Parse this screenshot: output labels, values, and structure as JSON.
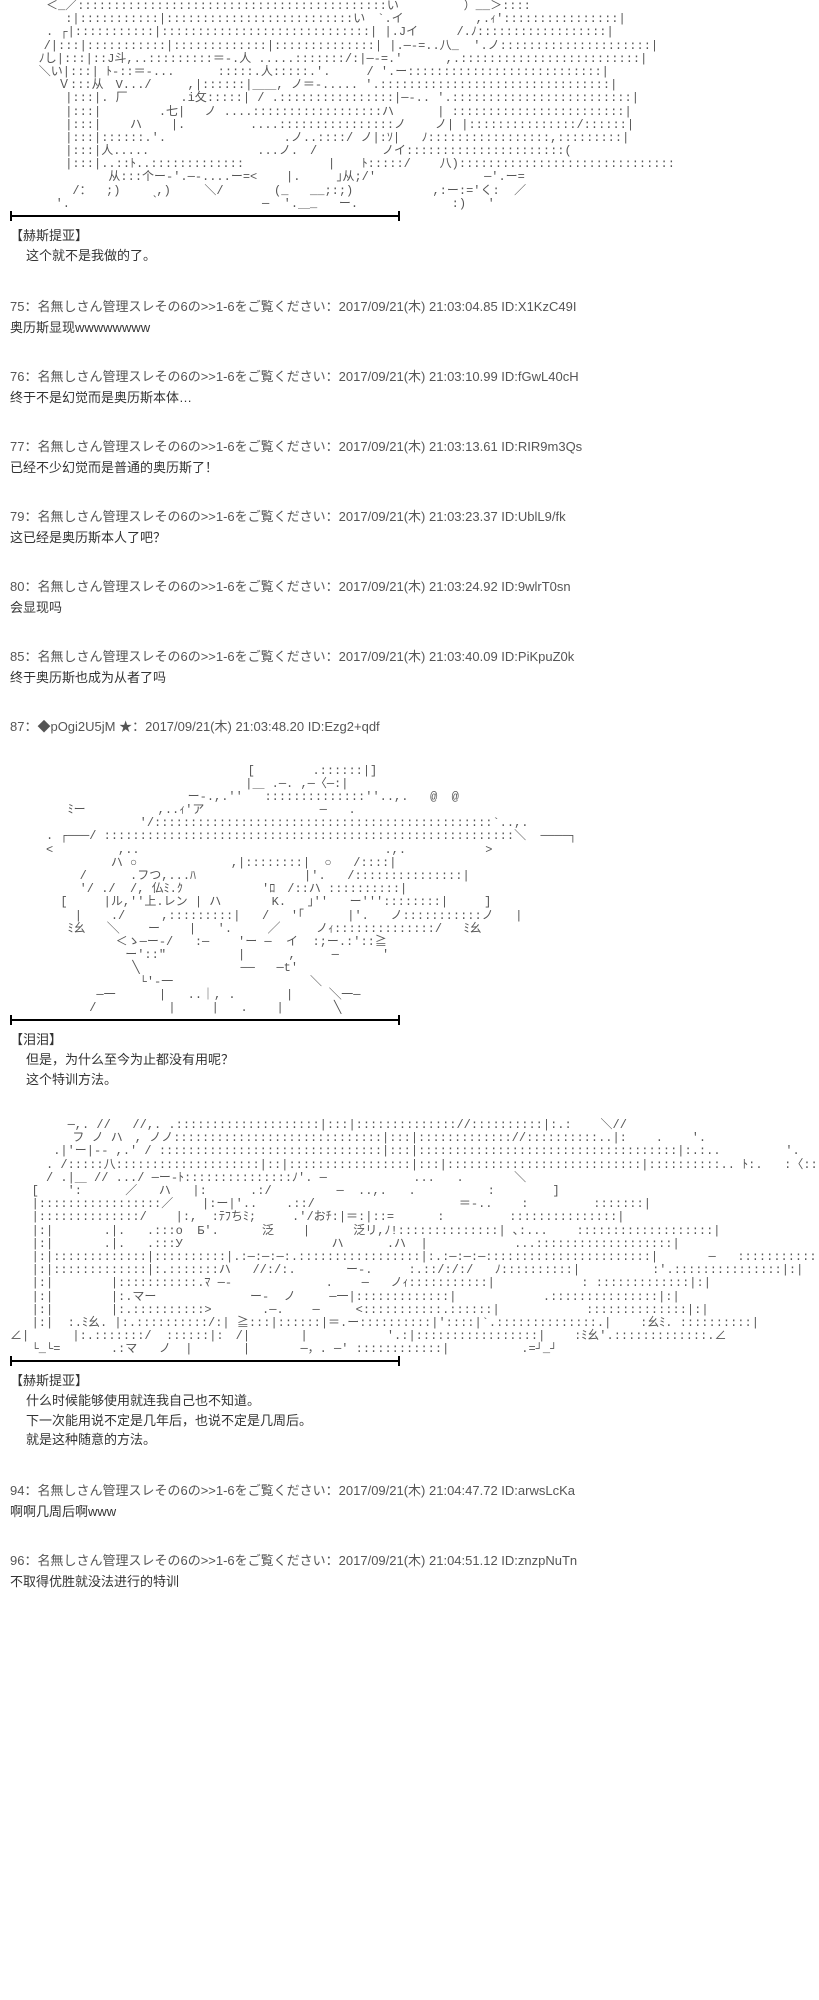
{
  "posts": [
    {
      "ascii": "     ＜_／:::::::::::::::::::::::::::::::::::::::::::い         ）__＞::::｀\n     　 :|:::::::::::|::::::::::::::::::::::::::い　`.イ          ,.ｨ'::::::::::::::::|\n     . ┌|:::::::::::|:::::::::::::::::::::::::::::| |.Jイ　  　/.ﾉ::::::::::::::::::|\n　   /|:::|:::::::::::|:::::::::::::|::::::::::::::| |.─-=..八_  '.ノ:::::::::::::::::::::|\n    ﾉし|:::|::J斗,..:::::::::＝-.人 .....:::::::/:|─-=.'      ,.:::::::::::::::::::::::::|\n    ＼い|:::| ﾄ-::＝-...      :::::.人:::::.'.     / '.ー:::::::::::::::::::::::::::|\n     　Ｖ:::从　V.../     ,|::::::|＿＿, ノ＝-..... '.::::::::::::::::::::::::::::::::|\n     　 |:::|. 厂    　　.i攵:::::| / .::::::::::::::::|─-.. '.:::::::::::::::::::::::::|\n     　 |:::|        .七| 　ノ ....::::::::::::::::::ハ      | ::::::::::::::::::::::::|\n     　 |:::|    ハ    |.    　　　....::::::::::::::::ノ    ノ| |:::::::::::::::/::::::|\n     　 |:::|::::::.'.          　   　.ノ..::::/ ノ|:ｿ|   ﾉ:::::::::::::::::,:::::::::|\n     　 |:::|人.....               ...ノ.　/         ノイ::::::::::::::::::::::(\n     　 |:::|..::ﾄ..::::::::::::: 　         |　  ﾄ:::::/    八)::::::::::::::::::::::::::::::\n     　       从:::个ー-'.─-....ー=<    |.     ｣从;/'               ─'.ー=\n      　 /：  ;)     ,)   　＼/       (_   __;:;)           ,:ー:='く:  ／\n   　　'.           ｀              ─  '.＿_   ー.             :)   '",
      "speaker": "【赫斯提亚】",
      "dialogue": "这个就不是我做的了。"
    }
  ],
  "comments": [
    {
      "num": "75",
      "name": "：名無しさん管理スレその6の>>1-6をご覧ください：",
      "date": "2017/09/21(木) 21:03:04.85",
      "id": "ID:X1KzC49I",
      "body": "奥历斯显现wwwwwwww"
    },
    {
      "num": "76",
      "name": "：名無しさん管理スレその6の>>1-6をご覧ください：",
      "date": "2017/09/21(木) 21:03:10.99",
      "id": "ID:fGwL40cH",
      "body": "终于不是幻觉而是奥历斯本体…"
    },
    {
      "num": "77",
      "name": "：名無しさん管理スレその6の>>1-6をご覧ください：",
      "date": "2017/09/21(木) 21:03:13.61",
      "id": "ID:RIR9m3Qs",
      "body": "已经不少幻觉而是普通的奥历斯了！"
    },
    {
      "num": "79",
      "name": "：名無しさん管理スレその6の>>1-6をご覧ください：",
      "date": "2017/09/21(木) 21:03:23.37",
      "id": "ID:UblL9/fk",
      "body": "这已经是奥历斯本人了吧？"
    },
    {
      "num": "80",
      "name": "：名無しさん管理スレその6の>>1-6をご覧ください：",
      "date": "2017/09/21(木) 21:03:24.92",
      "id": "ID:9wlrT0sn",
      "body": "会显现吗"
    },
    {
      "num": "85",
      "name": "：名無しさん管理スレその6の>>1-6をご覧ください：",
      "date": "2017/09/21(木) 21:03:40.09",
      "id": "ID:PiKpuZ0k",
      "body": "终于奥历斯也成为从者了吗"
    }
  ],
  "authorPost": {
    "num": "87",
    "name": "：◆pOgi2U5jM ★：",
    "date": "2017/09/21(木) 21:03:48.20",
    "id": "ID:Ezg2+qdf"
  },
  "posts2": [
    {
      "ascii": "                                 [        .::::::|]\n           　                    |＿ .─. ,─〈─:|\n            　           ー-.,.''   ::::::::::::::''..,.   @  @\n        ﾐー          ,..ｨ'ア                ─   .\n                  '/:::::::::::::::::::::::::::::::::::::::::::::::`..,.\n     . ┌───/ :::::::::::::::::::::::::::::::::::::::::::::::::::::::::＼  ────┐\n     <         ,..                                  .,.           >\n              ハ ○             ,|::::::::|  ○   /::::|\n       　 /      .フつ,...ﾊ  　 　 　      |'.   /:::::::::::::::|\n     　   '/ ./  /, 仏ﾐ.ｸ           'ﾛ　/::ハ ::::::::::|\n       [     |ル,''上.レン | ハ       K.   ｣''   ー'''::::::::|     ]\n         |    ./     ,:::::::::|   /   '｢      |'.   ノ:::::::::::ノ   |\n        ﾐ幺   ╲    ー    |   '.     ╱     ノｨ::::::::::::::/   ﾐ幺\n          　   ＜ゝ─ー-/   :─    'ー ─  イ  :;ー.:'::≧\n                ー'::\"          |      ,     ─      '\n                 ╲              ──   ─t'\n                  └'-一                   ＼\n            ─一      |   ..｜, .       |     ╲一─\n           /          |     |   .    |       ╲",
      "speaker": "【泪泪】",
      "dialogue": "但是，为什么至今为止都没有用呢？\n这个特训方法。"
    },
    {
      "ascii": "        ─,. //   //,. .::::::::::::::::::::|:::|:::::::::::::://::::::::::|:.:    ＼//\n       　フ ノ ハ　, ノノ:::::::::::::::::::::::::::::|:::|::::::::::::://::::::::::..|:    .    '.\n      .|'ー|-- ,.' / :::::::::::::::::::::::::::::::|:::|::::::::::::::::::::::::::::::::::::|:.:..         '.\n     . /:::::八::::::::::::::::::::|::|:::::::::::::::::|:::|:::::::::::::::::::::::::::|::::::::::.. ﾄ:.   :〈::::|\n     / .|＿ // .../ ─ー-ﾄ:::::::::::::::ﾉ'. ─            ...   .       ＼\n   [    ':      ／   ハ   |:      .:/         ─  ..,.   .          :        ]\n   |:::::::::::::::::／    |:ー|'..    .::/                    ＝-..    :         :::::::|\n   |::::::::::::::/    |:,  :ﾃﾌちﾐ;     .'/おﾁ:|＝:|::=      :         :::::::::::::::|\n   |:|       .|.   .:::o  Б'.      泛    |      泛リ,ﾉ!::::::::::::::| ､:...    :::::::::::::::::::|\n   |:|       .|.   .:::У     　              ハ      .ハ  |            ...:::::::::::::::::::|\n   |:|:::::::::::::|::::::::::|.:─:─:─:.:::::::::::::::::|:.:─:─:─:::::::::::::::::::::::|       ─   :::::::::::|\n   |:|:::::::::::::|:.:::::::ハ   //:/:.       ー-.     :.::/:/:/   ﾉ::::::::::|          :'.:::::::::::::::|:|\n   |:|        |:::::::::::.ﾏ ─-             .    ─   ノｨ:::::::::::|            : :::::::::::::|:|\n   |:|        |:.マー             ー-  ノ 　  ─一|:::::::::::::|            .:::::::::::::::|:|\n   |:|        |:.::::::::::>       .─.    ─     <:::::::::::.::::::|            ::::::::::::::|:|\n   |:|  :.ﾐ幺. |:.::::::::::/:| ≧:::|::::::|＝.ー::::::::::|'::::|`.::::::::::::::.|    :幺ﾐ. ::::::::::|\n∠|      |:.:::::::/  ::::::|:　/|       |           '.:|:::::::::::::::::|    :ﾐ幺'.:::::::::::::.∠\n   └_└=       .:マ   ノ  |       |       ─，. ─' ::::::::::::|          .=┘_┘",
      "speaker": "【赫斯提亚】",
      "dialogue": "什么时候能够使用就连我自己也不知道。\n下一次能用说不定是几年后，也说不定是几周后。\n就是这种随意的方法。"
    }
  ],
  "comments2": [
    {
      "num": "94",
      "name": "：名無しさん管理スレその6の>>1-6をご覧ください：",
      "date": "2017/09/21(木) 21:04:47.72",
      "id": "ID:arwsLcKa",
      "body": "啊啊几周后啊www"
    },
    {
      "num": "96",
      "name": "：名無しさん管理スレその6の>>1-6をご覧ください：",
      "date": "2017/09/21(木) 21:04:51.12",
      "id": "ID:znzpNuTn",
      "body": "不取得优胜就没法进行的特训"
    }
  ]
}
